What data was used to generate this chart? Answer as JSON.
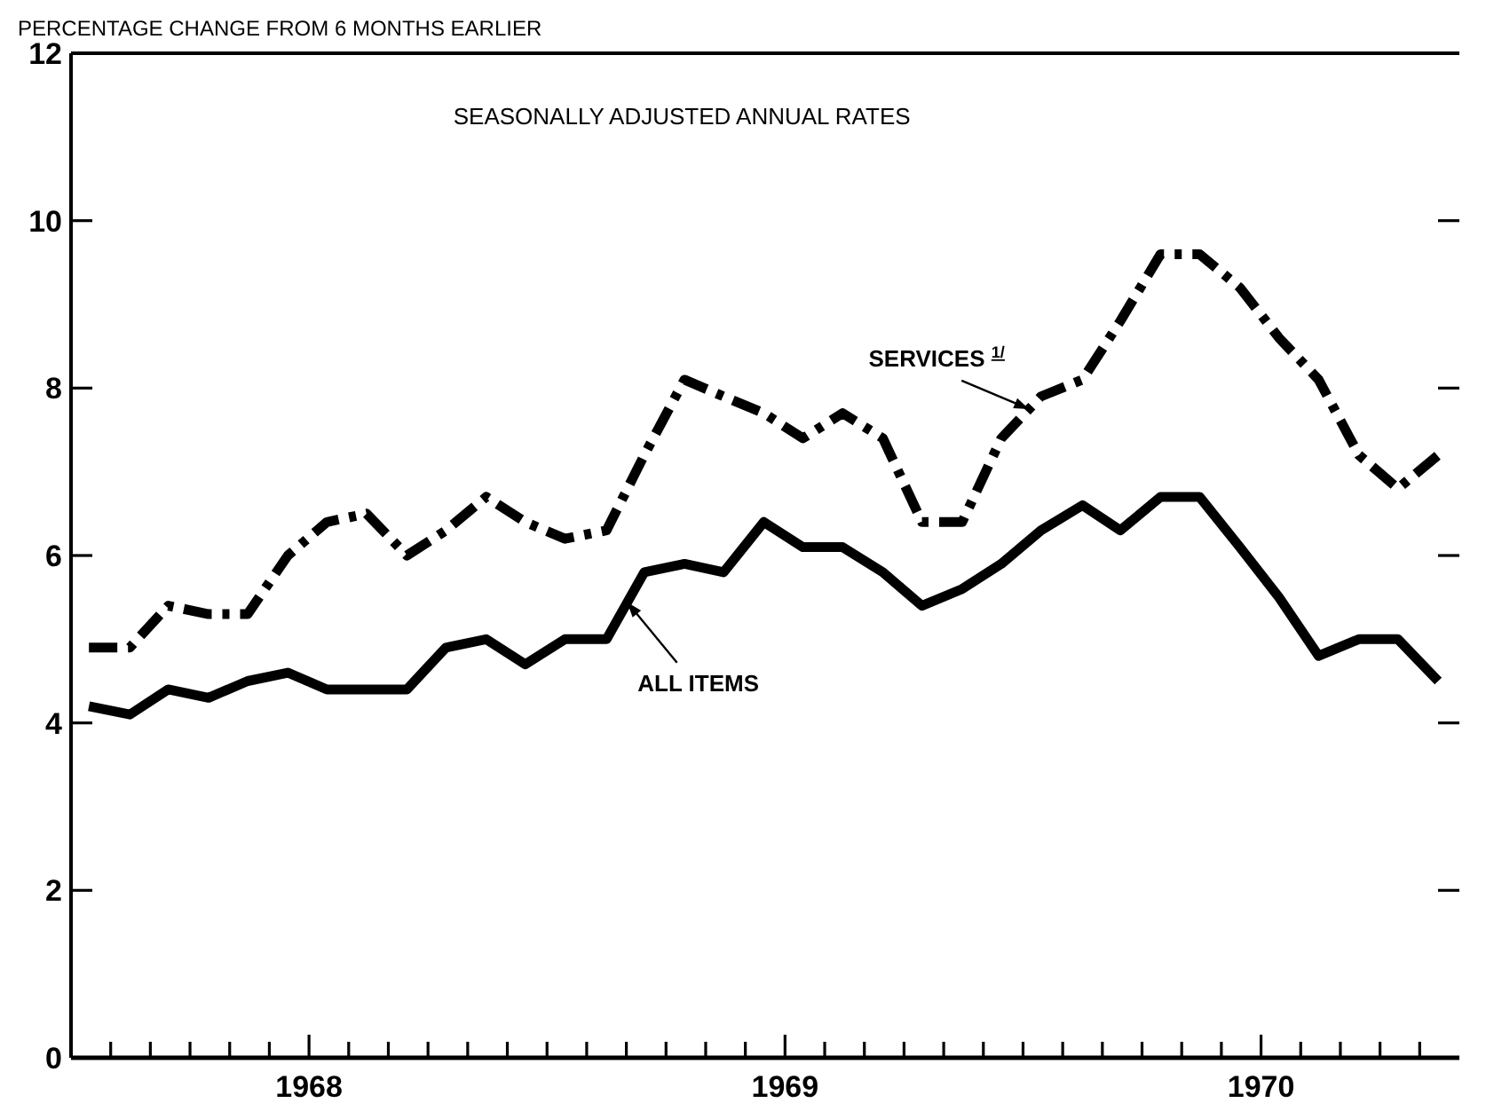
{
  "chart_data": {
    "type": "line",
    "ylabel": "PERCENTAGE CHANGE FROM 6 MONTHS EARLIER",
    "annotations": [
      "SEASONALLY ADJUSTED ANNUAL RATES"
    ],
    "x": [
      "1968-01-15",
      "1968-02-15",
      "1968-03-15",
      "1968-04-15",
      "1968-05-15",
      "1968-06-15",
      "1968-07-15",
      "1968-08-15",
      "1968-09-15",
      "1968-10-15",
      "1968-11-15",
      "1968-12-15",
      "1969-01-15",
      "1969-02-15",
      "1969-03-15",
      "1969-04-15",
      "1969-05-15",
      "1969-06-15",
      "1969-07-15",
      "1969-08-15",
      "1969-09-15",
      "1969-10-15",
      "1969-11-15",
      "1969-12-15",
      "1970-01-15",
      "1970-02-15",
      "1970-03-15",
      "1970-04-15",
      "1970-05-15",
      "1970-06-15",
      "1970-07-15",
      "1970-08-15",
      "1970-09-15",
      "1970-10-15",
      "1970-11-15"
    ],
    "series": [
      {
        "name": "SERVICES $^{1/}$",
        "color": "#000000",
        "line_style": "dashdot",
        "values": [
          4.9,
          4.9,
          5.4,
          5.3,
          5.3,
          6.0,
          6.4,
          6.5,
          6.0,
          6.3,
          6.7,
          6.4,
          6.2,
          6.3,
          7.2,
          8.1,
          7.9,
          7.7,
          7.4,
          7.7,
          7.4,
          6.4,
          6.4,
          7.4,
          7.9,
          8.1,
          8.8,
          9.6,
          9.6,
          9.2,
          8.6,
          8.1,
          7.2,
          6.8,
          7.2
        ]
      },
      {
        "name": "ALL ITEMS",
        "color": "#000000",
        "line_style": "solid",
        "values": [
          4.2,
          4.1,
          4.4,
          4.3,
          4.5,
          4.6,
          4.4,
          4.4,
          4.4,
          4.9,
          5.0,
          4.7,
          5.0,
          5.0,
          5.8,
          5.9,
          5.8,
          6.4,
          6.1,
          6.1,
          5.8,
          5.4,
          5.6,
          5.9,
          6.3,
          6.6,
          6.3,
          6.7,
          6.7,
          6.1,
          5.5,
          4.8,
          5.0,
          5.0,
          4.5
        ]
      }
    ],
    "xlim": [
      "1968-01-01",
      "1970-12-01"
    ],
    "xticks": [
      {
        "value": "1968-02-01",
        "label": null
      },
      {
        "value": "1968-03-01",
        "label": null
      },
      {
        "value": "1968-04-01",
        "label": null
      },
      {
        "value": "1968-05-01",
        "label": null
      },
      {
        "value": "1968-06-01",
        "label": null
      },
      {
        "value": "1968-07-01",
        "label": "1968"
      },
      {
        "value": "1968-08-01",
        "label": null
      },
      {
        "value": "1968-09-01",
        "label": null
      },
      {
        "value": "1968-10-01",
        "label": null
      },
      {
        "value": "1968-11-01",
        "label": null
      },
      {
        "value": "1968-12-01",
        "label": null
      },
      {
        "value": "1969-01-01",
        "label": null
      },
      {
        "value": "1969-02-01",
        "label": null
      },
      {
        "value": "1969-03-01",
        "label": null
      },
      {
        "value": "1969-04-01",
        "label": null
      },
      {
        "value": "1969-05-01",
        "label": null
      },
      {
        "value": "1969-06-01",
        "label": null
      },
      {
        "value": "1969-07-01",
        "label": "1969"
      },
      {
        "value": "1969-08-01",
        "label": null
      },
      {
        "value": "1969-09-01",
        "label": null
      },
      {
        "value": "1969-10-01",
        "label": null
      },
      {
        "value": "1969-11-01",
        "label": null
      },
      {
        "value": "1969-12-01",
        "label": null
      },
      {
        "value": "1970-01-01",
        "label": null
      },
      {
        "value": "1970-02-01",
        "label": null
      },
      {
        "value": "1970-03-01",
        "label": null
      },
      {
        "value": "1970-04-01",
        "label": null
      },
      {
        "value": "1970-05-01",
        "label": null
      },
      {
        "value": "1970-06-01",
        "label": null
      },
      {
        "value": "1970-07-01",
        "label": "1970"
      },
      {
        "value": "1970-08-01",
        "label": null
      },
      {
        "value": "1970-09-01",
        "label": null
      },
      {
        "value": "1970-10-01",
        "label": null
      },
      {
        "value": "1970-11-01",
        "label": null
      }
    ],
    "ylim": [
      0,
      12
    ],
    "yticks": [
      0,
      2,
      4,
      6,
      8,
      10,
      12
    ]
  }
}
